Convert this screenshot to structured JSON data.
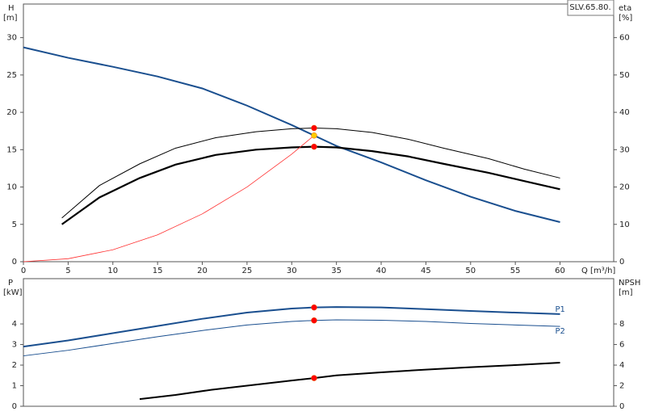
{
  "chart_data": [
    {
      "type": "line",
      "title": "SLV.65.80.",
      "xlabel": "Q [m³/h]",
      "ylabel": "H",
      "yunit": "[m]",
      "y2label": "eta",
      "y2unit": "[%]",
      "xlim": [
        0,
        66
      ],
      "xticks": [
        0,
        5,
        10,
        15,
        20,
        25,
        30,
        35,
        40,
        45,
        50,
        55,
        60
      ],
      "ylim": [
        0,
        34.5
      ],
      "yticks": [
        0,
        5,
        10,
        15,
        20,
        25,
        30
      ],
      "y2lim": [
        0,
        69
      ],
      "y2ticks": [
        0,
        10,
        20,
        30,
        40,
        50,
        60
      ],
      "series": [
        {
          "color": "#1a4f8f",
          "width": 2,
          "x": [
            0,
            5,
            10,
            15,
            20,
            25,
            30,
            32.5,
            35,
            40,
            45,
            50,
            55,
            60
          ],
          "values": [
            28.7,
            27.3,
            26.1,
            24.8,
            23.2,
            20.9,
            18.3,
            16.9,
            15.5,
            13.3,
            10.9,
            8.7,
            6.8,
            5.3
          ]
        },
        {
          "color": "#000000",
          "width": 1,
          "axis": "y2",
          "x": [
            4.3,
            8.5,
            13,
            17,
            21.5,
            26,
            30,
            32.5,
            35,
            39,
            43,
            47,
            52,
            56,
            60
          ],
          "values": [
            11.7,
            20.4,
            26.2,
            30.4,
            33.2,
            34.8,
            35.6,
            35.8,
            35.6,
            34.6,
            32.8,
            30.4,
            27.6,
            24.8,
            22.4
          ]
        },
        {
          "color": "#000000",
          "width": 2.2,
          "axis": "y2",
          "x": [
            4.3,
            8.5,
            13,
            17,
            21.5,
            26,
            30,
            32.5,
            35,
            39,
            43,
            47,
            52,
            56,
            60
          ],
          "values": [
            10,
            17.2,
            22.4,
            26,
            28.6,
            30,
            30.6,
            30.8,
            30.6,
            29.6,
            28.2,
            26.2,
            23.8,
            21.6,
            19.4
          ]
        },
        {
          "color": "#ff3030",
          "width": 0.8,
          "x": [
            0,
            5,
            10,
            15,
            20,
            25,
            30,
            32.5
          ],
          "values": [
            0,
            0.4,
            1.6,
            3.6,
            6.4,
            10,
            14.4,
            16.9
          ]
        }
      ],
      "points": [
        {
          "x": 32.5,
          "y": 35.8,
          "axis": "y2",
          "color": "#ff0000"
        },
        {
          "x": 32.5,
          "y": 16.9,
          "color": "#ffcc00"
        },
        {
          "x": 32.5,
          "y": 30.8,
          "axis": "y2",
          "color": "#ff0000"
        }
      ]
    },
    {
      "type": "line",
      "ylabel": "P",
      "yunit": "[kW]",
      "y2label": "NPSH",
      "y2unit": "[m]",
      "xlim": [
        0,
        66
      ],
      "ylim": [
        0,
        6.2
      ],
      "yticks": [
        0,
        1,
        2,
        3,
        4
      ],
      "y2lim": [
        0,
        12.4
      ],
      "y2ticks": [
        0,
        2,
        4,
        6,
        8
      ],
      "series": [
        {
          "name": "P1",
          "color": "#1a4f8f",
          "width": 2,
          "x": [
            0,
            5,
            10,
            15,
            20,
            25,
            30,
            32.5,
            35,
            40,
            45,
            50,
            55,
            60
          ],
          "values": [
            2.9,
            3.2,
            3.55,
            3.9,
            4.25,
            4.55,
            4.75,
            4.8,
            4.82,
            4.8,
            4.72,
            4.63,
            4.55,
            4.48
          ]
        },
        {
          "name": "P2",
          "color": "#1a4f8f",
          "width": 1,
          "x": [
            0,
            5,
            10,
            15,
            20,
            25,
            30,
            32.5,
            35,
            40,
            45,
            50,
            55,
            60
          ],
          "values": [
            2.45,
            2.72,
            3.05,
            3.38,
            3.68,
            3.95,
            4.12,
            4.17,
            4.2,
            4.18,
            4.12,
            4.02,
            3.95,
            3.88
          ]
        },
        {
          "color": "#000000",
          "width": 2,
          "axis": "y2",
          "x": [
            13,
            17,
            21,
            25,
            30,
            32.5,
            35,
            40,
            45,
            50,
            55,
            60
          ],
          "values": [
            0.7,
            1.1,
            1.6,
            2.0,
            2.5,
            2.74,
            3.0,
            3.3,
            3.56,
            3.8,
            4.0,
            4.24
          ]
        }
      ],
      "points": [
        {
          "x": 32.5,
          "y": 4.8,
          "color": "#ff0000"
        },
        {
          "x": 32.5,
          "y": 4.17,
          "color": "#ff0000"
        },
        {
          "x": 32.5,
          "y": 2.74,
          "axis": "y2",
          "color": "#ff0000"
        }
      ]
    }
  ]
}
